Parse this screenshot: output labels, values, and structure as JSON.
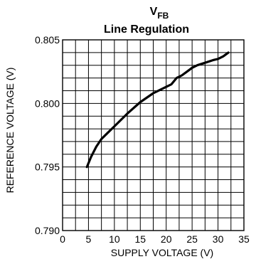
{
  "chart_data": {
    "type": "line",
    "title_main": "V",
    "title_sub": "FB",
    "title_line2": "Line Regulation",
    "xlabel": "SUPPLY VOLTAGE (V)",
    "ylabel": "REFERENCE VOLTAGE (V)",
    "xlim": [
      0,
      35
    ],
    "ylim": [
      0.79,
      0.805
    ],
    "x_ticks": [
      0,
      5,
      10,
      15,
      20,
      25,
      30,
      35
    ],
    "x_tick_labels": [
      "0",
      "5",
      "10",
      "15",
      "20",
      "25",
      "30",
      "35"
    ],
    "y_ticks": [
      0.79,
      0.795,
      0.8,
      0.805
    ],
    "y_tick_labels": [
      "0.790",
      "0.795",
      "0.800",
      "0.805"
    ],
    "grid": true,
    "x_minor_step": 2.5,
    "y_minor_step": 0.001,
    "series": [
      {
        "x": [
          4.7,
          5.5,
          6.5,
          7.5,
          8.5,
          10,
          12.5,
          15,
          17.5,
          20,
          21,
          22,
          23,
          24,
          25,
          26,
          27.5,
          29,
          30,
          31,
          32
        ],
        "y": [
          0.795,
          0.7958,
          0.7966,
          0.7972,
          0.7976,
          0.7982,
          0.7992,
          0.8001,
          0.8008,
          0.8013,
          0.8015,
          0.802,
          0.8022,
          0.8025,
          0.8028,
          0.803,
          0.8032,
          0.8034,
          0.8035,
          0.8037,
          0.804
        ]
      }
    ]
  }
}
